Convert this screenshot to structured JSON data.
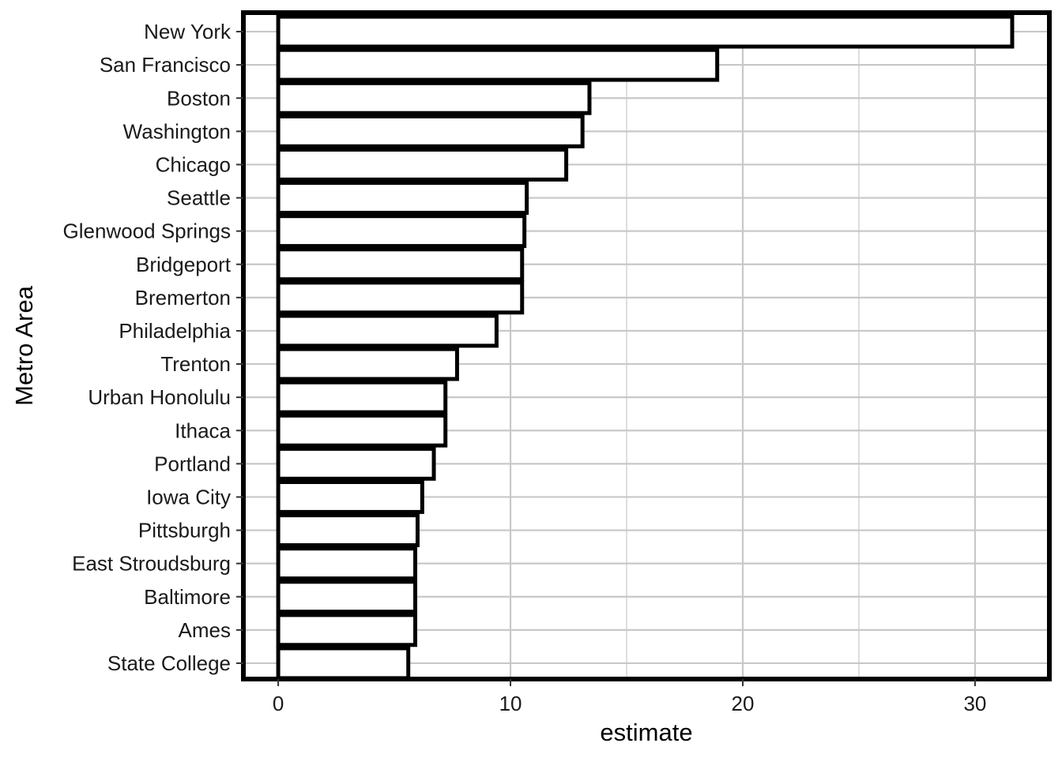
{
  "chart_data": {
    "type": "bar",
    "orientation": "horizontal",
    "categories": [
      "New York",
      "San Francisco",
      "Boston",
      "Washington",
      "Chicago",
      "Seattle",
      "Glenwood Springs",
      "Bridgeport",
      "Bremerton",
      "Philadelphia",
      "Trenton",
      "Urban Honolulu",
      "Ithaca",
      "Portland",
      "Iowa City",
      "Pittsburgh",
      "East Stroudsburg",
      "Baltimore",
      "Ames",
      "State College"
    ],
    "values": [
      31.6,
      18.9,
      13.4,
      13.1,
      12.4,
      10.7,
      10.6,
      10.5,
      10.5,
      9.4,
      7.7,
      7.2,
      7.2,
      6.7,
      6.2,
      6.0,
      5.9,
      5.9,
      5.9,
      5.6
    ],
    "xlabel": "estimate",
    "ylabel": "Metro Area",
    "xlim": [
      -1.5,
      33.2
    ],
    "xticks": [
      "0",
      "10",
      "20",
      "30"
    ],
    "xtick_values": [
      0,
      10,
      20,
      30
    ],
    "grid": true,
    "colors": {
      "bar_fill": "#ffffff",
      "bar_stroke": "#000000",
      "grid": "#c8c8c8",
      "panel_border": "#000000"
    }
  }
}
